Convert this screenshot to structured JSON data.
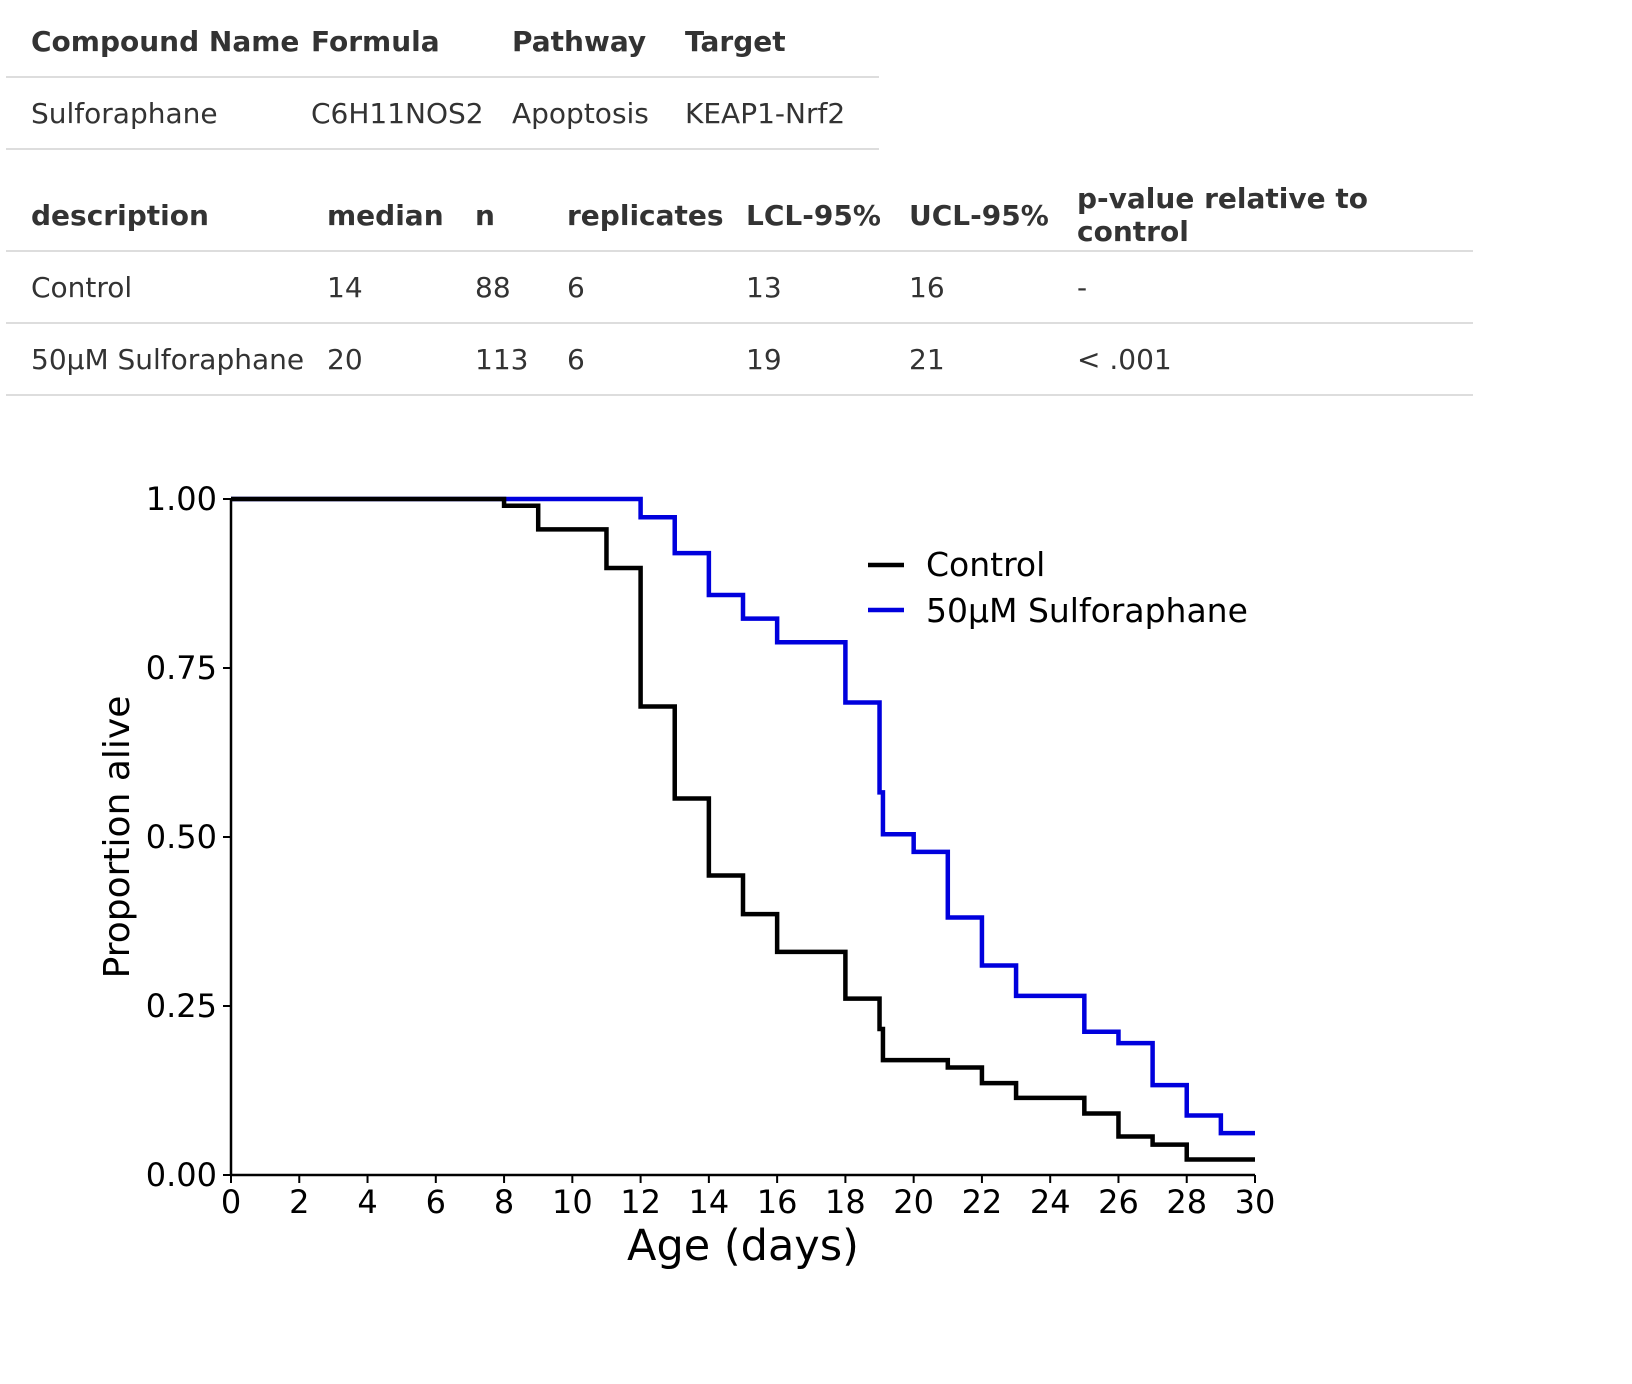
{
  "compound_table": {
    "headers": [
      "Compound Name",
      "Formula",
      "Pathway",
      "Target"
    ],
    "rows": [
      [
        "Sulforaphane",
        "C6H11NOS2",
        "Apoptosis",
        "KEAP1-Nrf2"
      ]
    ]
  },
  "stats_table": {
    "headers": [
      "description",
      "median",
      "n",
      "replicates",
      "LCL-95%",
      "UCL-95%",
      "p-value relative to control"
    ],
    "rows": [
      [
        "Control",
        "14",
        "88",
        "6",
        "13",
        "16",
        "-"
      ],
      [
        "50µM Sulforaphane",
        "20",
        "113",
        "6",
        "19",
        "21",
        "< .001"
      ]
    ]
  },
  "chart_data": {
    "type": "line",
    "step": true,
    "xlabel": "Age (days)",
    "ylabel": "Proportion alive",
    "xlim": [
      0,
      30
    ],
    "ylim": [
      0,
      1
    ],
    "xticks": [
      0,
      2,
      4,
      6,
      8,
      10,
      12,
      14,
      16,
      18,
      20,
      22,
      24,
      26,
      28,
      30
    ],
    "yticks": [
      0,
      0.25,
      0.5,
      0.75,
      1
    ],
    "ytick_labels": [
      "0.00",
      "0.25",
      "0.50",
      "0.75",
      "1.00"
    ],
    "grid": false,
    "legend_position": "top-right",
    "series": [
      {
        "name": "Control",
        "color": "#000000",
        "x": [
          0,
          8,
          9,
          11,
          12,
          13,
          14,
          15,
          16,
          18,
          19,
          19.1,
          21,
          22,
          23,
          25,
          26,
          27,
          28,
          30
        ],
        "y": [
          1.0,
          0.99,
          0.955,
          0.898,
          0.693,
          0.557,
          0.443,
          0.386,
          0.33,
          0.261,
          0.216,
          0.17,
          0.159,
          0.136,
          0.114,
          0.091,
          0.057,
          0.045,
          0.023,
          0.023
        ]
      },
      {
        "name": "50µM Sulforaphane",
        "color": "#0000dd",
        "x": [
          0,
          12,
          13,
          14,
          15,
          16,
          18,
          19,
          19.1,
          20,
          21,
          22,
          23,
          25,
          26,
          27,
          28,
          29,
          30
        ],
        "y": [
          1.0,
          0.973,
          0.92,
          0.858,
          0.823,
          0.788,
          0.699,
          0.566,
          0.504,
          0.478,
          0.381,
          0.31,
          0.265,
          0.212,
          0.195,
          0.133,
          0.088,
          0.062,
          0.062
        ]
      }
    ]
  }
}
